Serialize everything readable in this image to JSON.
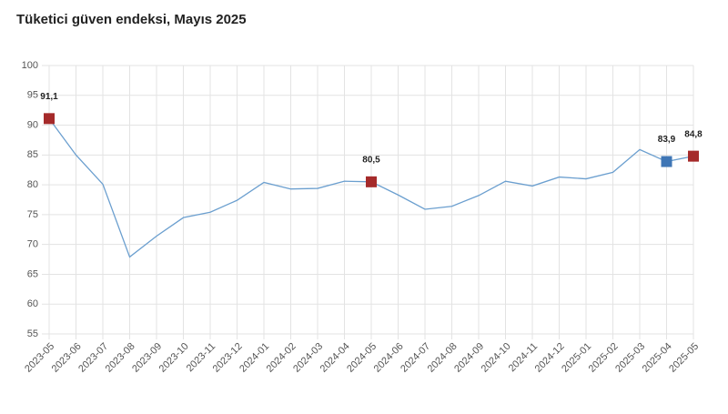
{
  "chart_data": {
    "type": "line",
    "title": "Tüketici güven endeksi, Mayıs 2025",
    "categories": [
      "2023-05",
      "2023-06",
      "2023-07",
      "2023-08",
      "2023-09",
      "2023-10",
      "2023-11",
      "2023-12",
      "2024-01",
      "2024-02",
      "2024-03",
      "2024-04",
      "2024-05",
      "2024-06",
      "2024-07",
      "2024-08",
      "2024-09",
      "2024-10",
      "2024-11",
      "2024-12",
      "2025-01",
      "2025-02",
      "2025-03",
      "2025-04",
      "2025-05"
    ],
    "series": [
      {
        "color": "#6b9fcf",
        "values": [
          91.1,
          85.0,
          80.1,
          67.9,
          71.4,
          74.5,
          75.4,
          77.4,
          80.4,
          79.3,
          79.4,
          80.6,
          80.5,
          78.3,
          75.9,
          76.4,
          78.2,
          80.6,
          79.8,
          81.3,
          81.0,
          82.1,
          85.9,
          83.9,
          84.8
        ],
        "value_labels": [
          "91,1",
          null,
          null,
          null,
          null,
          null,
          null,
          null,
          null,
          null,
          null,
          null,
          "80,5",
          null,
          null,
          null,
          null,
          null,
          null,
          null,
          null,
          null,
          null,
          "83,9",
          "84,8"
        ],
        "marker_colors": [
          "#a52a2a",
          null,
          null,
          null,
          null,
          null,
          null,
          null,
          null,
          null,
          null,
          null,
          "#a52a2a",
          null,
          null,
          null,
          null,
          null,
          null,
          null,
          null,
          null,
          null,
          "#3f76b5",
          "#a52a2a"
        ]
      }
    ],
    "ylim": [
      55,
      100
    ],
    "yticks": [
      55,
      60,
      65,
      70,
      75,
      80,
      85,
      90,
      95,
      100
    ],
    "grid": true
  }
}
